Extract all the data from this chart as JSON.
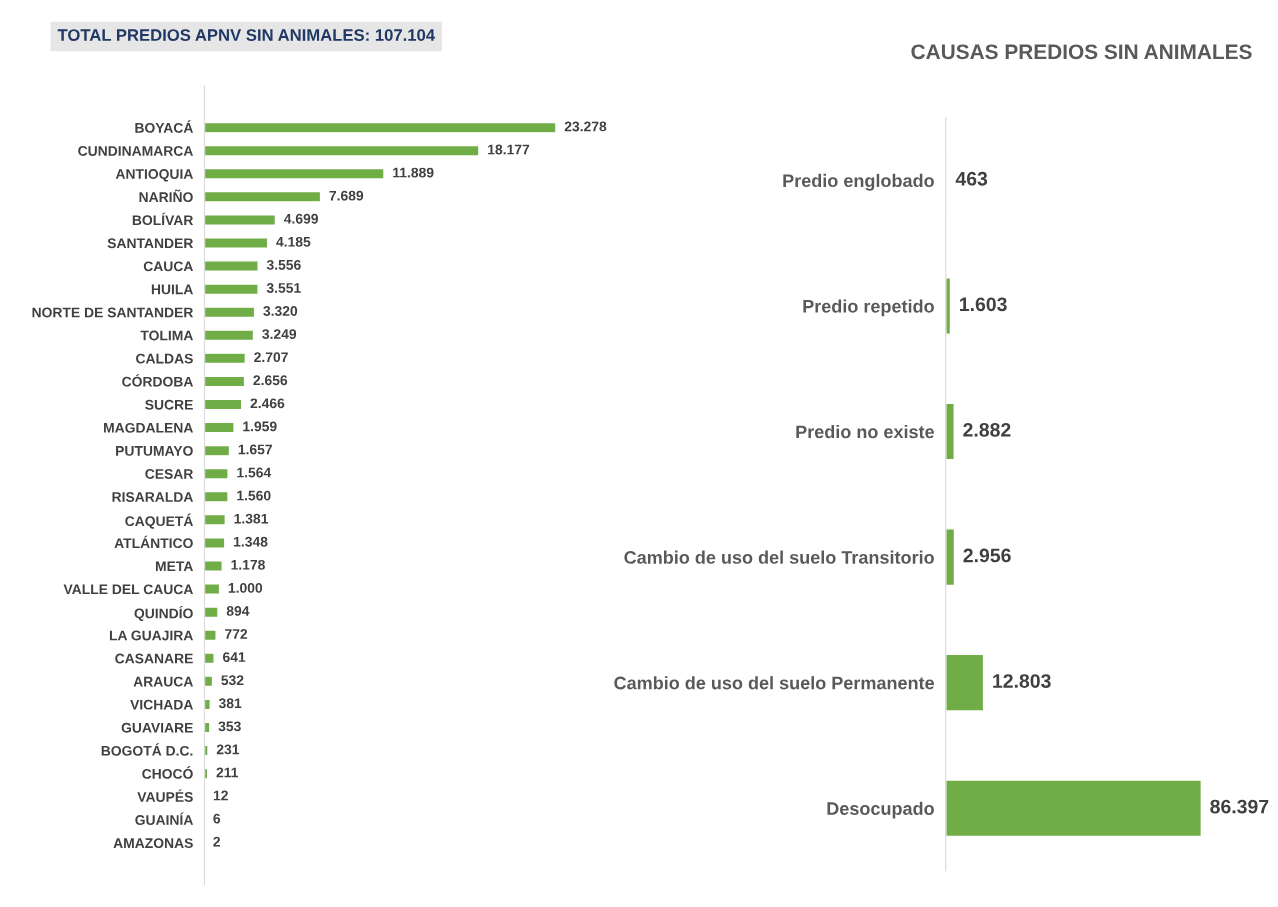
{
  "chart_data": [
    {
      "type": "bar",
      "orientation": "horizontal",
      "title": "TOTAL PREDIOS APNV SIN ANIMALES: 107.104",
      "categories": [
        "BOYACÁ",
        "CUNDINAMARCA",
        "ANTIOQUIA",
        "NARIÑO",
        "BOLÍVAR",
        "SANTANDER",
        "CAUCA",
        "HUILA",
        "NORTE DE SANTANDER",
        "TOLIMA",
        "CALDAS",
        "CÓRDOBA",
        "SUCRE",
        "MAGDALENA",
        "PUTUMAYO",
        "CESAR",
        "RISARALDA",
        "CAQUETÁ",
        "ATLÁNTICO",
        "META",
        "VALLE DEL CAUCA",
        "QUINDÍO",
        "LA GUAJIRA",
        "CASANARE",
        "ARAUCA",
        "VICHADA",
        "GUAVIARE",
        "BOGOTÁ D.C.",
        "CHOCÓ",
        "VAUPÉS",
        "GUAINÍA",
        "AMAZONAS"
      ],
      "values": [
        23278,
        18177,
        11889,
        7689,
        4699,
        4185,
        3556,
        3551,
        3320,
        3249,
        2707,
        2656,
        2466,
        1959,
        1657,
        1564,
        1560,
        1381,
        1348,
        1178,
        1000,
        894,
        772,
        641,
        532,
        381,
        353,
        231,
        211,
        12,
        6,
        2
      ],
      "value_labels": [
        "23.278",
        "18.177",
        "11.889",
        "7.689",
        "4.699",
        "4.185",
        "3.556",
        "3.551",
        "3.320",
        "3.249",
        "2.707",
        "2.656",
        "2.466",
        "1.959",
        "1.657",
        "1.564",
        "1.560",
        "1.381",
        "1.348",
        "1.178",
        "1.000",
        "894",
        "772",
        "641",
        "532",
        "381",
        "353",
        "231",
        "211",
        "12",
        "6",
        "2"
      ],
      "color": "#70ad47",
      "grid": false,
      "legend": false
    },
    {
      "type": "bar",
      "orientation": "horizontal",
      "title": "CAUSAS PREDIOS SIN ANIMALES",
      "categories": [
        "Predio englobado",
        "Predio repetido",
        "Predio no existe",
        "Cambio de uso del suelo Transitorio",
        "Cambio de uso del suelo Permanente",
        "Desocupado"
      ],
      "values": [
        463,
        1603,
        2882,
        2956,
        12803,
        86397
      ],
      "value_labels": [
        "463",
        "1.603",
        "2.882",
        "2.956",
        "12.803",
        "86.397"
      ],
      "color": "#70ad47",
      "grid": false,
      "legend": false
    }
  ]
}
